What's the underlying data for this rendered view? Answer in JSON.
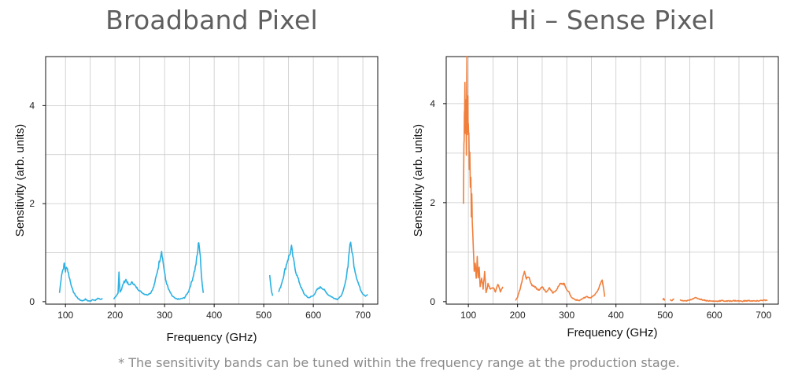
{
  "footnote": "* The sensitivity bands can be tuned within the frequency range at the production stage.",
  "chart_data": [
    {
      "type": "line",
      "title": "Broadband Pixel",
      "xlabel": "Frequency (GHz)",
      "ylabel": "Sensitivity (arb. units)",
      "xlim": [
        60,
        730
      ],
      "ylim": [
        -0.05,
        5.0
      ],
      "xticks": [
        "100",
        "200",
        "300",
        "400",
        "500",
        "600",
        "700"
      ],
      "yticks": [
        "0",
        "2",
        "4"
      ],
      "grid": true,
      "color": "#2db1e2",
      "series": [
        {
          "points": [
            [
              88,
              0.18
            ],
            [
              92,
              0.55
            ],
            [
              96,
              0.7
            ],
            [
              98,
              0.78
            ],
            [
              100,
              0.62
            ],
            [
              103,
              0.72
            ],
            [
              106,
              0.58
            ],
            [
              110,
              0.4
            ],
            [
              115,
              0.22
            ],
            [
              120,
              0.13
            ],
            [
              125,
              0.07
            ],
            [
              130,
              0.03
            ],
            [
              135,
              0.02
            ],
            [
              140,
              0.05
            ],
            [
              145,
              0.02
            ],
            [
              150,
              0.01
            ],
            [
              155,
              0.05
            ],
            [
              160,
              0.02
            ],
            [
              165,
              0.07
            ],
            [
              170,
              0.05
            ],
            [
              175,
              0.06
            ]
          ]
        },
        {
          "points": [
            [
              197,
              0.06
            ],
            [
              202,
              0.1
            ],
            [
              206,
              0.17
            ],
            [
              208,
              0.6
            ],
            [
              210,
              0.2
            ],
            [
              213,
              0.25
            ],
            [
              217,
              0.38
            ],
            [
              222,
              0.45
            ],
            [
              228,
              0.33
            ],
            [
              235,
              0.4
            ],
            [
              242,
              0.3
            ],
            [
              250,
              0.22
            ],
            [
              258,
              0.16
            ],
            [
              265,
              0.14
            ],
            [
              272,
              0.18
            ],
            [
              278,
              0.3
            ],
            [
              284,
              0.55
            ],
            [
              290,
              0.85
            ],
            [
              294,
              1.05
            ],
            [
              297,
              0.8
            ],
            [
              302,
              0.45
            ],
            [
              308,
              0.25
            ],
            [
              315,
              0.12
            ],
            [
              322,
              0.06
            ],
            [
              330,
              0.05
            ],
            [
              340,
              0.08
            ],
            [
              348,
              0.2
            ],
            [
              356,
              0.45
            ],
            [
              362,
              0.7
            ],
            [
              366,
              0.95
            ],
            [
              369,
              1.25
            ],
            [
              372,
              0.9
            ],
            [
              374,
              0.6
            ],
            [
              376,
              0.35
            ],
            [
              378,
              0.18
            ]
          ]
        },
        {
          "points": [
            [
              512,
              0.55
            ],
            [
              514,
              0.35
            ],
            [
              516,
              0.2
            ],
            [
              518,
              0.12
            ]
          ]
        },
        {
          "points": [
            [
              530,
              0.2
            ],
            [
              534,
              0.3
            ],
            [
              538,
              0.45
            ],
            [
              543,
              0.65
            ],
            [
              548,
              0.85
            ],
            [
              552,
              0.95
            ],
            [
              556,
              1.1
            ],
            [
              560,
              0.85
            ],
            [
              565,
              0.6
            ],
            [
              570,
              0.45
            ],
            [
              575,
              0.3
            ],
            [
              582,
              0.15
            ],
            [
              590,
              0.08
            ],
            [
              600,
              0.12
            ],
            [
              608,
              0.25
            ],
            [
              615,
              0.3
            ],
            [
              622,
              0.24
            ],
            [
              630,
              0.14
            ],
            [
              640,
              0.08
            ],
            [
              648,
              0.05
            ],
            [
              655,
              0.1
            ],
            [
              660,
              0.2
            ],
            [
              665,
              0.4
            ],
            [
              670,
              0.75
            ],
            [
              674,
              1.2
            ],
            [
              678,
              1.05
            ],
            [
              682,
              0.75
            ],
            [
              686,
              0.55
            ],
            [
              690,
              0.4
            ],
            [
              695,
              0.25
            ],
            [
              700,
              0.16
            ],
            [
              705,
              0.12
            ],
            [
              710,
              0.14
            ]
          ]
        }
      ]
    },
    {
      "type": "line",
      "title": "Hi – Sense Pixel",
      "xlabel": "Frequency (GHz)",
      "ylabel": "Sensitivity (arb. units)",
      "xlim": [
        55,
        730
      ],
      "ylim": [
        -0.05,
        4.95
      ],
      "xticks": [
        "100",
        "200",
        "300",
        "400",
        "500",
        "600",
        "700"
      ],
      "yticks": [
        "0",
        "2",
        "4"
      ],
      "grid": true,
      "color": "#f07f3c",
      "series": [
        {
          "points": [
            [
              90,
              2.1
            ],
            [
              91,
              3.2
            ],
            [
              92,
              3.7
            ],
            [
              93,
              4.2
            ],
            [
              94,
              3.6
            ],
            [
              95,
              3.9
            ],
            [
              96,
              3.1
            ],
            [
              97,
              4.9
            ],
            [
              98,
              3.4
            ],
            [
              99,
              4.0
            ],
            [
              100,
              3.6
            ],
            [
              101,
              3.3
            ],
            [
              102,
              2.7
            ],
            [
              103,
              3.2
            ],
            [
              104,
              2.4
            ],
            [
              105,
              2.6
            ],
            [
              106,
              1.7
            ],
            [
              107,
              2.3
            ],
            [
              108,
              1.6
            ],
            [
              110,
              1.1
            ],
            [
              112,
              0.6
            ],
            [
              114,
              0.75
            ],
            [
              116,
              0.45
            ],
            [
              118,
              0.92
            ],
            [
              120,
              0.5
            ],
            [
              122,
              0.7
            ],
            [
              124,
              0.3
            ],
            [
              127,
              0.5
            ],
            [
              130,
              0.25
            ],
            [
              133,
              0.6
            ],
            [
              136,
              0.18
            ],
            [
              140,
              0.35
            ],
            [
              145,
              0.25
            ],
            [
              150,
              0.3
            ],
            [
              155,
              0.2
            ],
            [
              160,
              0.35
            ],
            [
              165,
              0.2
            ],
            [
              170,
              0.3
            ]
          ]
        },
        {
          "points": [
            [
              196,
              0.02
            ],
            [
              200,
              0.1
            ],
            [
              205,
              0.25
            ],
            [
              210,
              0.45
            ],
            [
              214,
              0.6
            ],
            [
              218,
              0.45
            ],
            [
              222,
              0.52
            ],
            [
              228,
              0.35
            ],
            [
              235,
              0.3
            ],
            [
              242,
              0.22
            ],
            [
              250,
              0.3
            ],
            [
              258,
              0.2
            ],
            [
              265,
              0.28
            ],
            [
              272,
              0.18
            ],
            [
              280,
              0.25
            ],
            [
              288,
              0.38
            ],
            [
              295,
              0.35
            ],
            [
              300,
              0.25
            ],
            [
              305,
              0.18
            ],
            [
              310,
              0.08
            ],
            [
              318,
              0.04
            ],
            [
              325,
              0.02
            ],
            [
              332,
              0.06
            ],
            [
              340,
              0.1
            ],
            [
              348,
              0.08
            ],
            [
              355,
              0.12
            ],
            [
              362,
              0.2
            ],
            [
              368,
              0.35
            ],
            [
              372,
              0.45
            ],
            [
              375,
              0.25
            ],
            [
              377,
              0.1
            ]
          ]
        },
        {
          "points": [
            [
              495,
              0.03
            ],
            [
              497,
              0.06
            ],
            [
              499,
              0.02
            ]
          ]
        },
        {
          "points": [
            [
              510,
              0.04
            ],
            [
              514,
              0.02
            ],
            [
              518,
              0.06
            ]
          ]
        },
        {
          "points": [
            [
              530,
              0.03
            ],
            [
              540,
              0.01
            ],
            [
              550,
              0.03
            ],
            [
              560,
              0.08
            ],
            [
              568,
              0.06
            ],
            [
              575,
              0.04
            ],
            [
              585,
              0.02
            ],
            [
              595,
              0.01
            ],
            [
              605,
              0.01
            ],
            [
              615,
              0.02
            ],
            [
              625,
              0.01
            ],
            [
              640,
              0.02
            ],
            [
              655,
              0.01
            ],
            [
              670,
              0.02
            ],
            [
              685,
              0.01
            ],
            [
              700,
              0.03
            ],
            [
              708,
              0.02
            ]
          ]
        }
      ]
    }
  ]
}
